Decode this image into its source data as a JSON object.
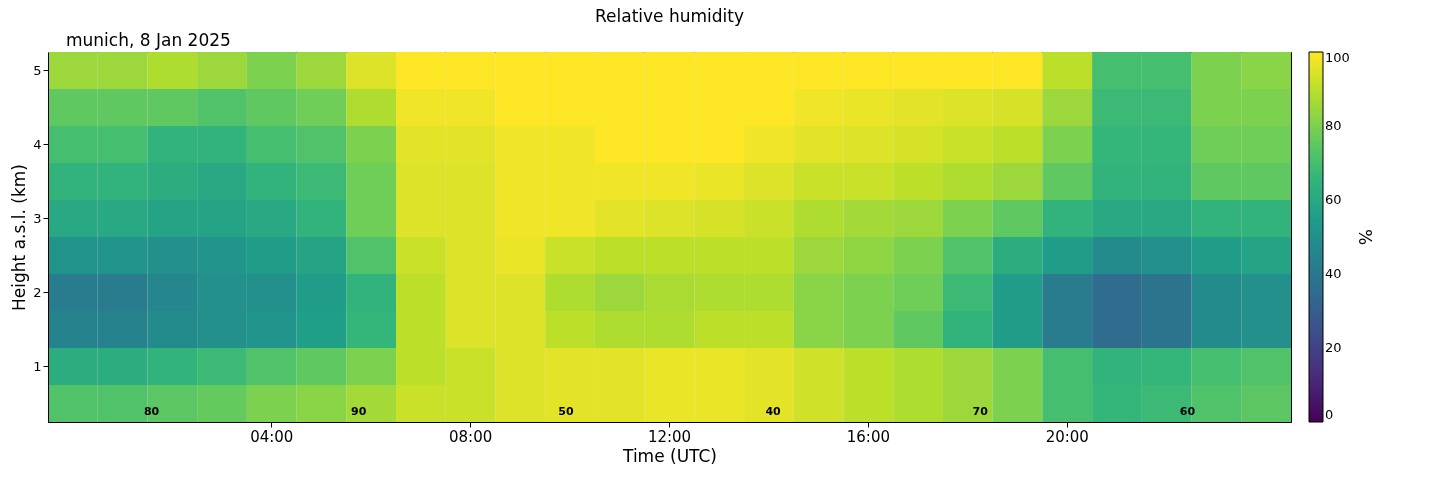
{
  "chart_data": {
    "type": "heatmap",
    "title": "Relative humidity",
    "subtitle": "munich, 8 Jan 2025",
    "xlabel": "Time (UTC)",
    "ylabel": "Height a.s.l. (km)",
    "clabel": "%",
    "categories": [
      null,
      null,
      null,
      null,
      "04:00",
      null,
      null,
      null,
      "08:00",
      null,
      null,
      null,
      "12:00",
      null,
      null,
      null,
      "16:00",
      null,
      null,
      null,
      "20:00",
      null,
      null,
      null,
      null
    ],
    "y_categories": [
      "5",
      null,
      "4",
      null,
      "3",
      null,
      "2",
      null,
      "1",
      null
    ],
    "clim": [
      0,
      100
    ],
    "cticks": [
      0,
      20,
      40,
      60,
      80,
      100
    ],
    "cells": [
      [
        85,
        85,
        88,
        85,
        80,
        85,
        95,
        100,
        100,
        100,
        100,
        100,
        100,
        100,
        100,
        100,
        100,
        100,
        100,
        100,
        90,
        70,
        70,
        80,
        82
      ],
      [
        75,
        75,
        75,
        72,
        75,
        78,
        88,
        98,
        98,
        100,
        100,
        100,
        100,
        100,
        100,
        98,
        97,
        96,
        95,
        94,
        85,
        68,
        68,
        80,
        80
      ],
      [
        70,
        70,
        65,
        65,
        70,
        72,
        80,
        96,
        96,
        98,
        98,
        100,
        100,
        100,
        98,
        96,
        95,
        94,
        92,
        90,
        80,
        66,
        66,
        78,
        78
      ],
      [
        65,
        65,
        62,
        60,
        65,
        68,
        78,
        95,
        95,
        98,
        98,
        98,
        98,
        97,
        95,
        92,
        92,
        90,
        88,
        85,
        75,
        65,
        65,
        75,
        75
      ],
      [
        60,
        60,
        58,
        58,
        60,
        65,
        78,
        95,
        95,
        98,
        98,
        96,
        95,
        94,
        92,
        88,
        86,
        85,
        80,
        75,
        65,
        60,
        60,
        65,
        65
      ],
      [
        52,
        52,
        50,
        52,
        55,
        58,
        72,
        92,
        95,
        97,
        92,
        90,
        90,
        90,
        90,
        85,
        83,
        80,
        72,
        62,
        55,
        48,
        50,
        55,
        58
      ],
      [
        42,
        42,
        46,
        50,
        50,
        55,
        65,
        90,
        95,
        95,
        88,
        85,
        87,
        88,
        88,
        82,
        80,
        78,
        68,
        55,
        42,
        35,
        38,
        48,
        50
      ],
      [
        45,
        45,
        48,
        50,
        52,
        56,
        66,
        90,
        95,
        95,
        90,
        88,
        88,
        90,
        90,
        82,
        80,
        75,
        65,
        55,
        42,
        35,
        38,
        48,
        50
      ],
      [
        62,
        62,
        65,
        68,
        72,
        75,
        80,
        90,
        92,
        95,
        96,
        96,
        97,
        97,
        96,
        93,
        90,
        88,
        85,
        80,
        70,
        65,
        66,
        70,
        72
      ],
      [
        72,
        72,
        74,
        76,
        80,
        82,
        86,
        92,
        92,
        95,
        96,
        96,
        97,
        97,
        96,
        93,
        90,
        88,
        85,
        80,
        70,
        66,
        68,
        72,
        74
      ]
    ],
    "annotations": [
      "80",
      "90",
      "50",
      "40",
      "70",
      "60"
    ]
  }
}
